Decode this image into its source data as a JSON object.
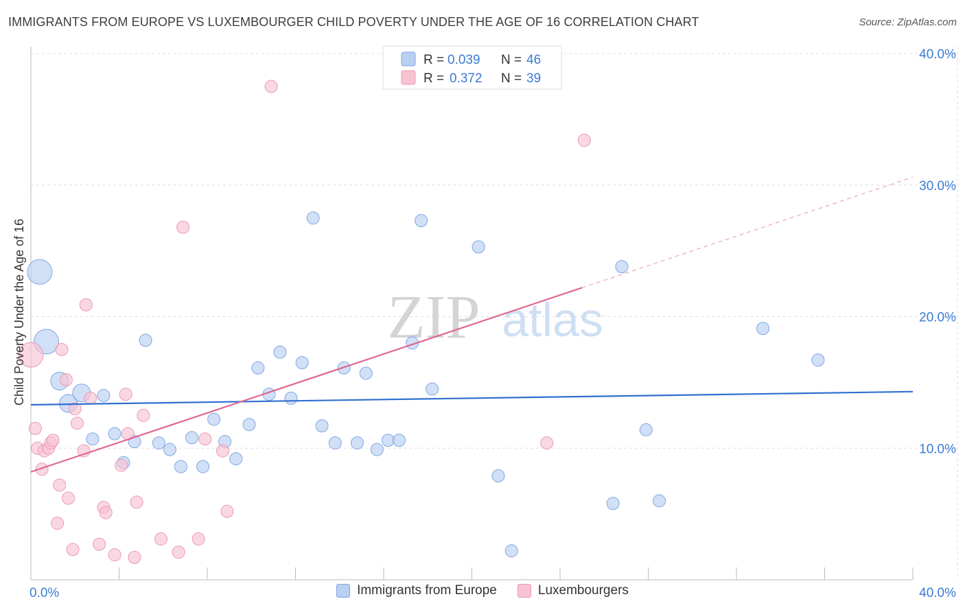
{
  "title": "IMMIGRANTS FROM EUROPE VS LUXEMBOURGER CHILD POVERTY UNDER THE AGE OF 16 CORRELATION CHART",
  "source": "Source: ZipAtlas.com",
  "watermark": {
    "zip": "ZIP",
    "atlas": "atlas"
  },
  "colors": {
    "blue_fill": "#b8d0f2",
    "blue_stroke": "#7ea6e0",
    "blue_line": "#2f6fd0",
    "pink_fill": "#f7c3d2",
    "pink_stroke": "#eb98b3",
    "pink_line": "#e0668f",
    "axis_text": "#3a7bd5",
    "grid": "#dddddd"
  },
  "legend": {
    "rows": [
      {
        "r_label": "R =",
        "r_value": "0.039",
        "n_label": "N =",
        "n_value": "46"
      },
      {
        "r_label": "R =",
        "r_value": "0.372",
        "n_label": "N =",
        "n_value": "39"
      }
    ]
  },
  "chart_data": {
    "type": "scatter",
    "title": "IMMIGRANTS FROM EUROPE VS LUXEMBOURGER CHILD POVERTY UNDER THE AGE OF 16 CORRELATION CHART",
    "xlabel": "",
    "ylabel": "Child Poverty Under the Age of 16",
    "xlim": [
      0,
      40
    ],
    "ylim": [
      0,
      40
    ],
    "x_tick_labels": [
      "0.0%",
      "40.0%"
    ],
    "y_ticks": [
      10,
      20,
      30,
      40
    ],
    "y_tick_labels": [
      "10.0%",
      "20.0%",
      "30.0%",
      "40.0%"
    ],
    "grid": true,
    "legend_position": "top-center",
    "series": [
      {
        "name": "Immigrants from Europe",
        "points": [
          {
            "x": 0.4,
            "y": 23.4,
            "s": 3
          },
          {
            "x": 0.7,
            "y": 18.1,
            "s": 3
          },
          {
            "x": 1.3,
            "y": 15.1,
            "s": 2
          },
          {
            "x": 1.7,
            "y": 13.4,
            "s": 2
          },
          {
            "x": 2.3,
            "y": 14.2,
            "s": 2
          },
          {
            "x": 3.3,
            "y": 14.0,
            "s": 1
          },
          {
            "x": 2.8,
            "y": 10.7,
            "s": 1
          },
          {
            "x": 3.8,
            "y": 11.1,
            "s": 1
          },
          {
            "x": 4.2,
            "y": 8.9,
            "s": 1
          },
          {
            "x": 4.7,
            "y": 10.5,
            "s": 1
          },
          {
            "x": 5.2,
            "y": 18.2,
            "s": 1
          },
          {
            "x": 5.8,
            "y": 10.4,
            "s": 1
          },
          {
            "x": 6.3,
            "y": 9.9,
            "s": 1
          },
          {
            "x": 6.8,
            "y": 8.6,
            "s": 1
          },
          {
            "x": 7.3,
            "y": 10.8,
            "s": 1
          },
          {
            "x": 7.8,
            "y": 8.6,
            "s": 1
          },
          {
            "x": 8.3,
            "y": 12.2,
            "s": 1
          },
          {
            "x": 8.8,
            "y": 10.5,
            "s": 1
          },
          {
            "x": 9.3,
            "y": 9.2,
            "s": 1
          },
          {
            "x": 9.9,
            "y": 11.8,
            "s": 1
          },
          {
            "x": 10.3,
            "y": 16.1,
            "s": 1
          },
          {
            "x": 10.8,
            "y": 14.1,
            "s": 1
          },
          {
            "x": 11.3,
            "y": 17.3,
            "s": 1
          },
          {
            "x": 11.8,
            "y": 13.8,
            "s": 1
          },
          {
            "x": 12.3,
            "y": 16.5,
            "s": 1
          },
          {
            "x": 12.8,
            "y": 27.5,
            "s": 1
          },
          {
            "x": 13.2,
            "y": 11.7,
            "s": 1
          },
          {
            "x": 13.8,
            "y": 10.4,
            "s": 1
          },
          {
            "x": 14.2,
            "y": 16.1,
            "s": 1
          },
          {
            "x": 14.8,
            "y": 10.4,
            "s": 1
          },
          {
            "x": 15.2,
            "y": 15.7,
            "s": 1
          },
          {
            "x": 15.7,
            "y": 9.9,
            "s": 1
          },
          {
            "x": 16.2,
            "y": 10.6,
            "s": 1
          },
          {
            "x": 16.7,
            "y": 10.6,
            "s": 1
          },
          {
            "x": 17.3,
            "y": 18.0,
            "s": 1
          },
          {
            "x": 17.7,
            "y": 27.3,
            "s": 1
          },
          {
            "x": 18.2,
            "y": 14.5,
            "s": 1
          },
          {
            "x": 20.3,
            "y": 25.3,
            "s": 1
          },
          {
            "x": 21.2,
            "y": 7.9,
            "s": 1
          },
          {
            "x": 21.8,
            "y": 2.2,
            "s": 1
          },
          {
            "x": 26.8,
            "y": 23.8,
            "s": 1
          },
          {
            "x": 26.4,
            "y": 5.8,
            "s": 1
          },
          {
            "x": 27.9,
            "y": 11.4,
            "s": 1
          },
          {
            "x": 28.5,
            "y": 6.0,
            "s": 1
          },
          {
            "x": 33.2,
            "y": 19.1,
            "s": 1
          },
          {
            "x": 35.7,
            "y": 16.7,
            "s": 1
          }
        ],
        "trend": {
          "x": [
            0,
            40
          ],
          "y": [
            13.3,
            14.3
          ]
        }
      },
      {
        "name": "Luxembourgers",
        "points": [
          {
            "x": 0.0,
            "y": 17.1,
            "s": 3
          },
          {
            "x": 0.2,
            "y": 11.5,
            "s": 1
          },
          {
            "x": 0.3,
            "y": 10.0,
            "s": 1
          },
          {
            "x": 0.5,
            "y": 8.4,
            "s": 1
          },
          {
            "x": 0.6,
            "y": 9.8,
            "s": 1
          },
          {
            "x": 0.8,
            "y": 10.0,
            "s": 1
          },
          {
            "x": 0.9,
            "y": 10.4,
            "s": 1
          },
          {
            "x": 1.0,
            "y": 10.6,
            "s": 1
          },
          {
            "x": 1.2,
            "y": 4.3,
            "s": 1
          },
          {
            "x": 1.3,
            "y": 7.2,
            "s": 1
          },
          {
            "x": 1.4,
            "y": 17.5,
            "s": 1
          },
          {
            "x": 1.6,
            "y": 15.2,
            "s": 1
          },
          {
            "x": 1.7,
            "y": 6.2,
            "s": 1
          },
          {
            "x": 1.9,
            "y": 2.3,
            "s": 1
          },
          {
            "x": 2.0,
            "y": 13.0,
            "s": 1
          },
          {
            "x": 2.1,
            "y": 11.9,
            "s": 1
          },
          {
            "x": 2.4,
            "y": 9.8,
            "s": 1
          },
          {
            "x": 2.5,
            "y": 20.9,
            "s": 1
          },
          {
            "x": 2.7,
            "y": 13.8,
            "s": 1
          },
          {
            "x": 3.1,
            "y": 2.7,
            "s": 1
          },
          {
            "x": 3.3,
            "y": 5.5,
            "s": 1
          },
          {
            "x": 3.4,
            "y": 5.1,
            "s": 1
          },
          {
            "x": 3.8,
            "y": 1.9,
            "s": 1
          },
          {
            "x": 4.1,
            "y": 8.7,
            "s": 1
          },
          {
            "x": 4.3,
            "y": 14.1,
            "s": 1
          },
          {
            "x": 4.4,
            "y": 11.1,
            "s": 1
          },
          {
            "x": 4.7,
            "y": 1.7,
            "s": 1
          },
          {
            "x": 4.8,
            "y": 5.9,
            "s": 1
          },
          {
            "x": 5.1,
            "y": 12.5,
            "s": 1
          },
          {
            "x": 5.9,
            "y": 3.1,
            "s": 1
          },
          {
            "x": 6.7,
            "y": 2.1,
            "s": 1
          },
          {
            "x": 6.9,
            "y": 26.8,
            "s": 1
          },
          {
            "x": 7.6,
            "y": 3.1,
            "s": 1
          },
          {
            "x": 7.9,
            "y": 10.7,
            "s": 1
          },
          {
            "x": 8.7,
            "y": 9.8,
            "s": 1
          },
          {
            "x": 8.9,
            "y": 5.2,
            "s": 1
          },
          {
            "x": 10.9,
            "y": 37.5,
            "s": 1
          },
          {
            "x": 23.4,
            "y": 10.4,
            "s": 1
          },
          {
            "x": 25.1,
            "y": 33.4,
            "s": 1
          }
        ],
        "trend": {
          "x": [
            0,
            25
          ],
          "y": [
            8.2,
            22.2
          ]
        },
        "trend_dashed": {
          "x": [
            25,
            40
          ],
          "y": [
            22.2,
            30.6
          ]
        }
      }
    ]
  }
}
